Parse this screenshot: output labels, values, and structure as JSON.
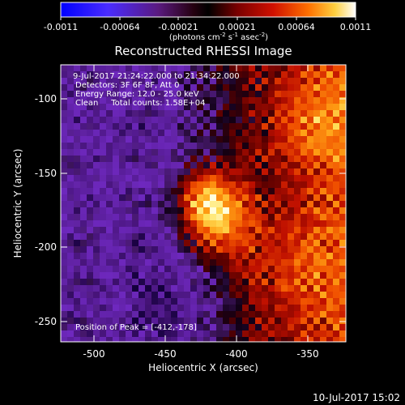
{
  "colorbar": {
    "ticks": [
      "-0.0011",
      "-0.00064",
      "-0.00021",
      "0.00021",
      "0.00064",
      "0.0011"
    ],
    "units_prefix": "(photons cm",
    "units_exp1": "-2",
    "units_mid": " s",
    "units_exp2": "-1",
    "units_mid2": " asec",
    "units_exp3": "-2",
    "units_suffix": ")"
  },
  "image": {
    "title": "Reconstructed RHESSI Image",
    "info": [
      "9-Jul-2017 21:24:22.000 to 21:34:22.000",
      "Detectors: 3F 6F 8F, Att 0",
      "Energy Range: 12.0 - 25.0 keV",
      "Clean     Total counts: 1.58E+04"
    ],
    "peak_label": "Position of Peak = [-412,-178]",
    "xlabel": "Heliocentric X (arcsec)",
    "ylabel": "Heliocentric Y (arcsec)",
    "xticks": [
      "-500",
      "-450",
      "-400",
      "-350"
    ],
    "yticks": [
      "-100",
      "-150",
      "-200",
      "-250"
    ]
  },
  "footer": {
    "timestamp": "10-Jul-2017 15:02"
  }
}
